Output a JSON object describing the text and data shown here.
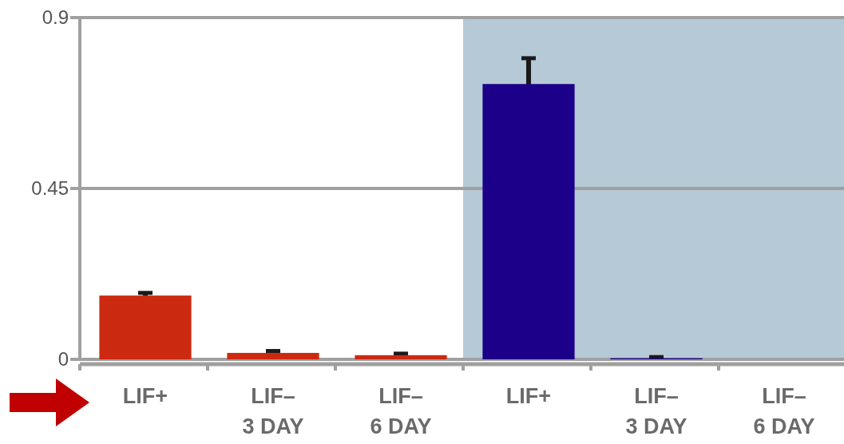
{
  "chart_data": {
    "type": "bar",
    "categories": [
      "LIF+",
      "LIF–\n3 DAY",
      "LIF–\n6 DAY",
      "LIF+",
      "LIF–\n3 DAY",
      "LIF–\n6 DAY"
    ],
    "values": [
      0.168,
      0.017,
      0.011,
      0.725,
      0.003,
      0
    ],
    "colors": [
      "#cc2a10",
      "#cc2a10",
      "#cc2a10",
      "#1c008a",
      "#1c008a",
      "#1c008a"
    ],
    "errors": [
      0.007,
      0.005,
      0.004,
      0.068,
      0.003,
      null
    ],
    "ylim": [
      0,
      0.9
    ],
    "yticks": [
      0,
      0.45,
      0.9
    ],
    "grid": "y"
  }
}
